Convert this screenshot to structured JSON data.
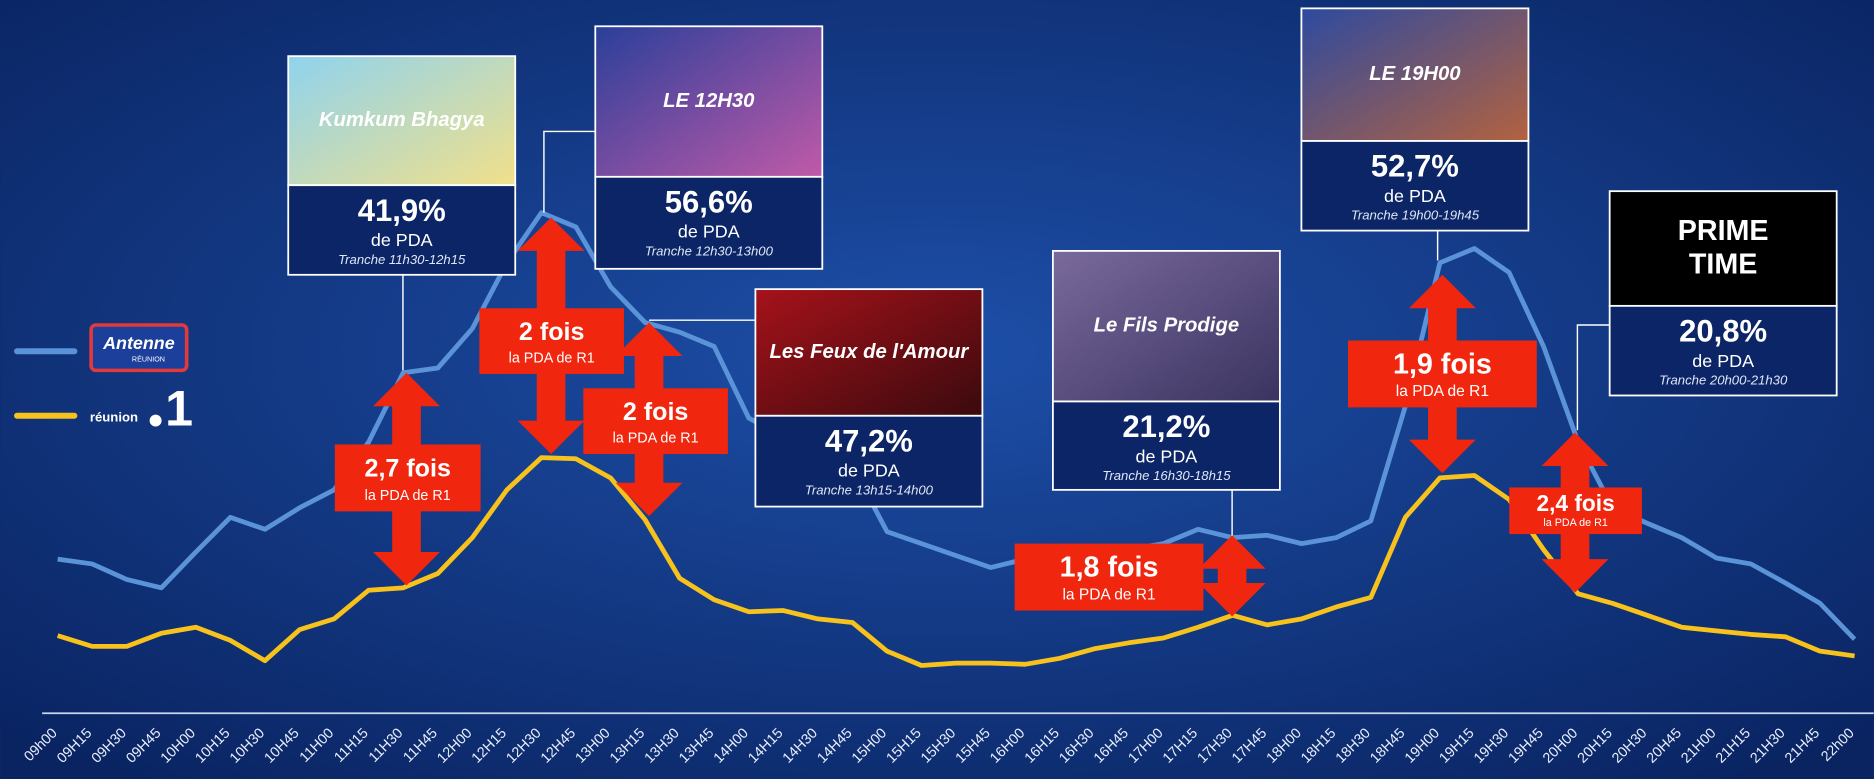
{
  "chart_data": {
    "type": "line",
    "categories": [
      "09h00",
      "09H15",
      "09H30",
      "09H45",
      "10H00",
      "10H15",
      "10H30",
      "10H45",
      "11H00",
      "11H15",
      "11H30",
      "11H45",
      "12H00",
      "12H15",
      "12H30",
      "12H45",
      "13H00",
      "13H15",
      "13H30",
      "13H45",
      "14H00",
      "14H15",
      "14H30",
      "14H45",
      "15H00",
      "15H15",
      "15H30",
      "15H45",
      "16H00",
      "16H15",
      "16H30",
      "16H45",
      "17H00",
      "17H15",
      "17H30",
      "17H45",
      "18H00",
      "18H15",
      "18H30",
      "18H45",
      "19H00",
      "19H15",
      "19H30",
      "19H45",
      "20H00",
      "20H15",
      "20H30",
      "20H45",
      "21H00",
      "21H15",
      "21H30",
      "21H45",
      "22h00"
    ],
    "ylim": [
      0,
      100
    ],
    "series": [
      {
        "name": "Antenne",
        "logo_subtitle": "RÉUNION",
        "color": "#5b93d9",
        "values": [
          26.4,
          25.6,
          23,
          21.6,
          27.6,
          33.4,
          31.4,
          35,
          38,
          46,
          57.6,
          58.4,
          65,
          76,
          84.4,
          82,
          72,
          66,
          64.4,
          62,
          50,
          47,
          45,
          42,
          31,
          29,
          27,
          25,
          26.4,
          26.4,
          27,
          28,
          29,
          31.4,
          30,
          30.4,
          29,
          30,
          32.8,
          52,
          76,
          78.4,
          74.4,
          62,
          46,
          35,
          32.4,
          30,
          26.6,
          25.6,
          22.4,
          19,
          13
        ]
      },
      {
        "name": "réunion",
        "logo_mark": "1",
        "color": "#f7c21b",
        "values": [
          13.6,
          11.8,
          11.8,
          14,
          15,
          12.8,
          9.4,
          14.6,
          16.4,
          21.2,
          21.6,
          24,
          30,
          38,
          43.4,
          43.2,
          40,
          33,
          23.2,
          19.6,
          17.6,
          17.8,
          16.4,
          15.8,
          11,
          8.6,
          9,
          9,
          8.8,
          9.8,
          11.4,
          12.4,
          13.2,
          15,
          17,
          15.4,
          16.4,
          18.4,
          20,
          33.4,
          40,
          40.4,
          36.4,
          28,
          20.6,
          19,
          17,
          15,
          14.4,
          13.8,
          13.4,
          11,
          10.2
        ]
      }
    ],
    "callouts": [
      {
        "program": "Kumkum Bhagya",
        "value": 41.9,
        "value_label": "41,9%",
        "text": "de PDA",
        "tranche": "Tranche 11h30-12h15"
      },
      {
        "program": "LE 12H30",
        "value": 56.6,
        "value_label": "56,6%",
        "text": "de PDA",
        "tranche": "Tranche 12h30-13h00"
      },
      {
        "program": "Les Feux de l'Amour",
        "value": 47.2,
        "value_label": "47,2%",
        "text": "de PDA",
        "tranche": "Tranche 13h15-14h00"
      },
      {
        "program": "Le Fils Prodige",
        "value": 21.2,
        "value_label": "21,2%",
        "text": "de PDA",
        "tranche": "Tranche 16h30-18h15"
      },
      {
        "program": "LE 19H00",
        "value": 52.7,
        "value_label": "52,7%",
        "text": "de PDA",
        "tranche": "Tranche 19h00-19h45"
      },
      {
        "program": "PRIME TIME",
        "value": 20.8,
        "value_label": "20,8%",
        "text": "de PDA",
        "tranche": "Tranche 20h00-21h30"
      }
    ],
    "ratios": [
      {
        "value": 2.7,
        "value_label": "2,7 fois",
        "text": "la PDA de R1"
      },
      {
        "value": 2,
        "value_label": "2 fois",
        "text": "la PDA de R1"
      },
      {
        "value": 2,
        "value_label": "2 fois",
        "text": "la PDA de R1"
      },
      {
        "value": 1.8,
        "value_label": "1,8 fois",
        "text": "la PDA de R1"
      },
      {
        "value": 1.9,
        "value_label": "1,9 fois",
        "text": "la PDA de R1"
      },
      {
        "value": 2.4,
        "value_label": "2,4 fois",
        "text": "la PDA de R1"
      }
    ]
  }
}
